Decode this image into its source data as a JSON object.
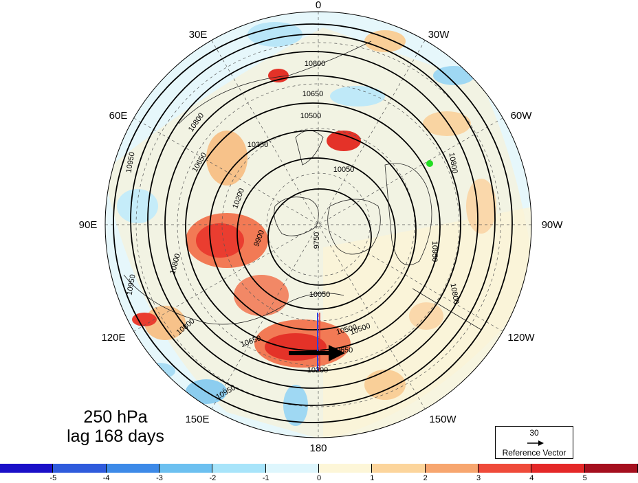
{
  "title": {
    "line1": "250 hPa",
    "line2": "lag 168 days"
  },
  "longitude_labels": [
    "0",
    "30W",
    "60W",
    "90W",
    "120W",
    "150W",
    "180",
    "150E",
    "120E",
    "90E",
    "60E",
    "30E"
  ],
  "contour_labels": [
    "10800",
    "10650",
    "10500",
    "10350",
    "10050",
    "10200",
    "9900",
    "9750",
    "10800",
    "10650",
    "10950",
    "10800",
    "10950",
    "10800",
    "10650",
    "10500",
    "10800",
    "10950",
    "10050",
    "10500",
    "10650",
    "10200",
    "10800",
    "10950"
  ],
  "reference_vector": {
    "magnitude": "30",
    "label": "Reference Vector"
  },
  "colorbar": {
    "labels": [
      "-5",
      "-4",
      "-3",
      "-2",
      "-1",
      "0",
      "1",
      "2",
      "3",
      "4",
      "5"
    ],
    "colors": [
      "#1a10c8",
      "#2f5bdc",
      "#3d8ae8",
      "#6cc0f0",
      "#a8e4fa",
      "#def6fd",
      "#fdf6d8",
      "#fcd59c",
      "#f7a66f",
      "#ef4a3a",
      "#e42828",
      "#a50f1e"
    ]
  },
  "colors": {
    "land_border": "#222222",
    "green_marker": "#22dd22"
  }
}
